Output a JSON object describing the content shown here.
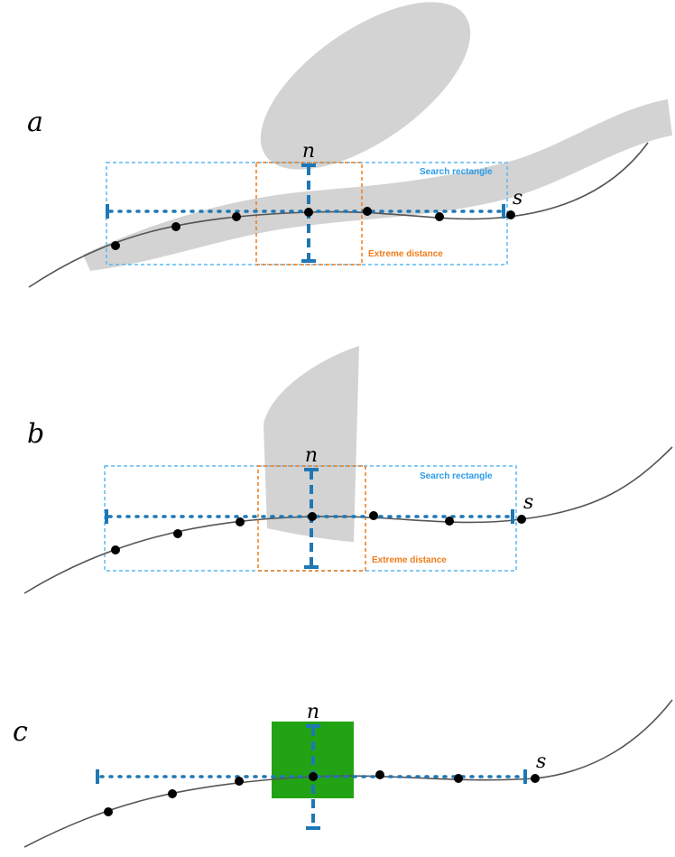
{
  "panels": [
    {
      "label": "a",
      "node": "n",
      "end": "s",
      "search_label": "Search rectangle",
      "extreme_label": "Extreme distance"
    },
    {
      "label": "b",
      "node": "n",
      "end": "s",
      "search_label": "Search rectangle",
      "extreme_label": "Extreme distance"
    },
    {
      "label": "c",
      "node": "n",
      "end": "s"
    }
  ]
}
